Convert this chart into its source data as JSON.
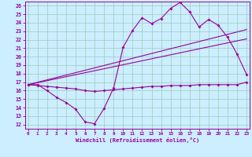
{
  "title": "",
  "xlabel": "Windchill (Refroidissement éolien,°C)",
  "bg_color": "#cceeff",
  "line_color": "#990099",
  "grid_color": "#99ccbb",
  "x_ticks": [
    0,
    1,
    2,
    3,
    4,
    5,
    6,
    7,
    8,
    9,
    10,
    11,
    12,
    13,
    14,
    15,
    16,
    17,
    18,
    19,
    20,
    21,
    22,
    23
  ],
  "y_ticks": [
    12,
    13,
    14,
    15,
    16,
    17,
    18,
    19,
    20,
    21,
    22,
    23,
    24,
    25,
    26
  ],
  "ylim": [
    11.5,
    26.5
  ],
  "xlim": [
    -0.3,
    23.3
  ],
  "series1_x": [
    0,
    1,
    2,
    3,
    4,
    5,
    6,
    7,
    8,
    9,
    10,
    11,
    12,
    13,
    14,
    15,
    16,
    17,
    18,
    19,
    20,
    21,
    22,
    23
  ],
  "series1_y": [
    16.7,
    16.7,
    16.0,
    15.2,
    14.6,
    13.8,
    12.3,
    12.1,
    13.9,
    16.3,
    21.1,
    23.1,
    24.6,
    23.9,
    24.5,
    25.7,
    26.4,
    25.3,
    23.5,
    24.4,
    23.7,
    22.3,
    20.3,
    17.9
  ],
  "series2_x": [
    0,
    1,
    2,
    3,
    4,
    5,
    6,
    7,
    8,
    9,
    10,
    11,
    12,
    13,
    14,
    15,
    16,
    17,
    18,
    19,
    20,
    21,
    22,
    23
  ],
  "series2_y": [
    16.7,
    16.6,
    16.5,
    16.4,
    16.3,
    16.2,
    16.0,
    15.9,
    16.0,
    16.1,
    16.2,
    16.3,
    16.4,
    16.5,
    16.5,
    16.6,
    16.6,
    16.6,
    16.7,
    16.7,
    16.7,
    16.7,
    16.7,
    17.0
  ],
  "series3_x": [
    0,
    23
  ],
  "series3_y": [
    16.7,
    23.2
  ],
  "series4_x": [
    0,
    23
  ],
  "series4_y": [
    16.7,
    22.1
  ]
}
